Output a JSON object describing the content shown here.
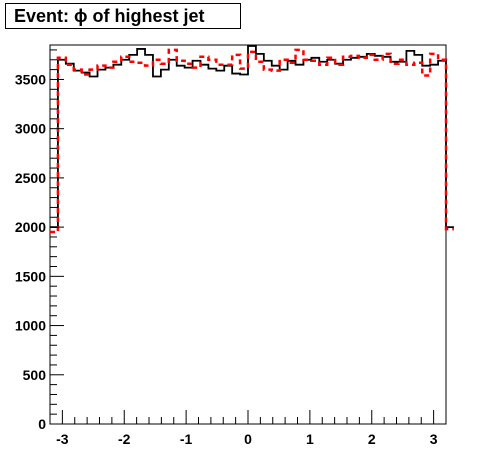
{
  "chart_data": {
    "type": "histogram",
    "title": "Event: ϕ of highest jet",
    "xlabel": "",
    "ylabel": "",
    "xlim": [
      -3.2,
      3.2
    ],
    "ylim": [
      0,
      3850
    ],
    "x_ticks": [
      -3,
      -2,
      -1,
      0,
      1,
      2,
      3
    ],
    "y_ticks": [
      0,
      500,
      1000,
      1500,
      2000,
      2500,
      3000,
      3500
    ],
    "bin_edges_start": -3.2,
    "bin_width": 0.128,
    "grid": false,
    "legend": "none",
    "series": [
      {
        "color": "#000000",
        "style": "solid",
        "values": [
          2000,
          3700,
          3660,
          3590,
          3570,
          3530,
          3600,
          3620,
          3650,
          3700,
          3750,
          3810,
          3750,
          3530,
          3600,
          3700,
          3640,
          3620,
          3690,
          3650,
          3610,
          3590,
          3640,
          3560,
          3550,
          3840,
          3760,
          3690,
          3640,
          3600,
          3690,
          3650,
          3700,
          3720,
          3680,
          3700,
          3660,
          3700,
          3720,
          3730,
          3760,
          3740,
          3730,
          3680,
          3680,
          3790,
          3750,
          3640,
          3650,
          3690,
          2000
        ]
      },
      {
        "color": "#ff0000",
        "style": "dashed",
        "values": [
          1950,
          3720,
          3650,
          3600,
          3550,
          3600,
          3640,
          3620,
          3680,
          3730,
          3680,
          3670,
          3640,
          3700,
          3660,
          3800,
          3690,
          3660,
          3620,
          3730,
          3700,
          3650,
          3650,
          3750,
          3610,
          3780,
          3680,
          3600,
          3590,
          3700,
          3670,
          3800,
          3700,
          3690,
          3650,
          3720,
          3650,
          3730,
          3740,
          3720,
          3750,
          3700,
          3760,
          3660,
          3700,
          3650,
          3670,
          3540,
          3760,
          3700,
          1980
        ]
      }
    ]
  }
}
